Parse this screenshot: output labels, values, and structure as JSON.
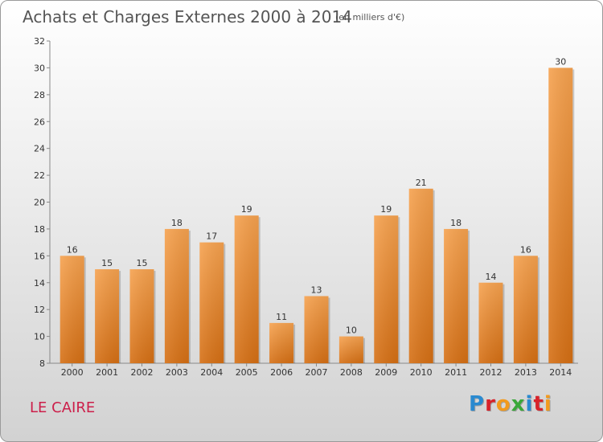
{
  "title": "Achats et Charges Externes 2000 à 2014",
  "subtitle": "(en milliers d'€)",
  "location": "LE CAIRE",
  "logo": "Proxiti",
  "colors": {
    "bar_top": "#f6a24f",
    "bar_bottom": "#d56f14",
    "city": "#cc1f4a"
  },
  "chart_data": {
    "type": "bar",
    "categories": [
      "2000",
      "2001",
      "2002",
      "2003",
      "2004",
      "2005",
      "2006",
      "2007",
      "2008",
      "2009",
      "2010",
      "2011",
      "2012",
      "2013",
      "2014"
    ],
    "values": [
      16,
      15,
      15,
      18,
      17,
      19,
      11,
      13,
      10,
      19,
      21,
      18,
      14,
      16,
      30
    ],
    "ylim": [
      8,
      32
    ],
    "yticks": [
      8,
      10,
      12,
      14,
      16,
      18,
      20,
      22,
      24,
      26,
      28,
      30,
      32
    ],
    "grid": false,
    "legend": "none"
  }
}
